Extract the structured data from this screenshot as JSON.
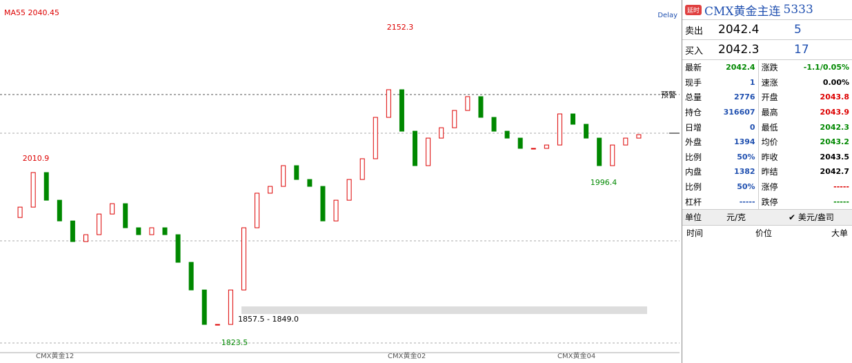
{
  "chart": {
    "ma_label": "MA55 2040.45",
    "delay": "Delay",
    "alert": "预警",
    "high_label": "2152.3",
    "high": 2152.3,
    "low_label": "1823.5",
    "low": 1823.5,
    "left_peak": "2010.9",
    "right_low": "1996.4",
    "range_label": "1857.5 - 1849.0",
    "x_labels": [
      "CMX黄金12",
      "CMX黄金02",
      "CMX黄金04"
    ],
    "closes": [
      1952.7,
      1963.8,
      2000.8,
      1971.2,
      1949.0,
      1926.9,
      1934.3,
      1956.4,
      1967.5,
      1941.7,
      1934.3,
      1941.7,
      1934.3,
      1904.7,
      1875.1,
      1838.2,
      1838.2,
      1875.1,
      1941.7,
      1978.7,
      1986.0,
      2008.2,
      1993.4,
      1986.0,
      1949.0,
      1971.2,
      1993.4,
      2015.6,
      2059.9,
      2089.5,
      2045.1,
      2008.2,
      2037.7,
      2048.8,
      2067.3,
      2082.1,
      2059.9,
      2045.1,
      2037.7,
      2026.7,
      2026.7,
      2030.3,
      2063.6,
      2052.5,
      2037.7,
      2008.2,
      2030.3,
      2037.7,
      2041.4
    ]
  },
  "panel": {
    "badge": "延时",
    "title": "CMX黄金主连",
    "code": "5333",
    "sell": [
      "卖出",
      "2042.4",
      "5"
    ],
    "buy": [
      "买入",
      "2042.3",
      "17"
    ],
    "rows": [
      [
        "最新",
        "2042.4",
        "涨跌",
        "-1.1/0.05%"
      ],
      [
        "现手",
        "1",
        "速涨",
        "0.00%"
      ],
      [
        "总量",
        "2776",
        "开盘",
        "2043.8"
      ],
      [
        "持仓",
        "316607",
        "最高",
        "2043.9"
      ],
      [
        "日增",
        "0",
        "最低",
        "2042.3"
      ],
      [
        "外盘",
        "1394",
        "均价",
        "2043.2"
      ],
      [
        "比例",
        "50%",
        "昨收",
        "2043.5"
      ],
      [
        "内盘",
        "1382",
        "昨结",
        "2042.7"
      ],
      [
        "比例",
        "50%",
        "涨停",
        "-----"
      ],
      [
        "杠杆",
        "-----",
        "跌停",
        "-----"
      ]
    ],
    "unit": [
      "单位",
      "元/克",
      "美元/盎司"
    ],
    "trade_header": [
      "时间",
      "价位",
      "大单"
    ]
  }
}
